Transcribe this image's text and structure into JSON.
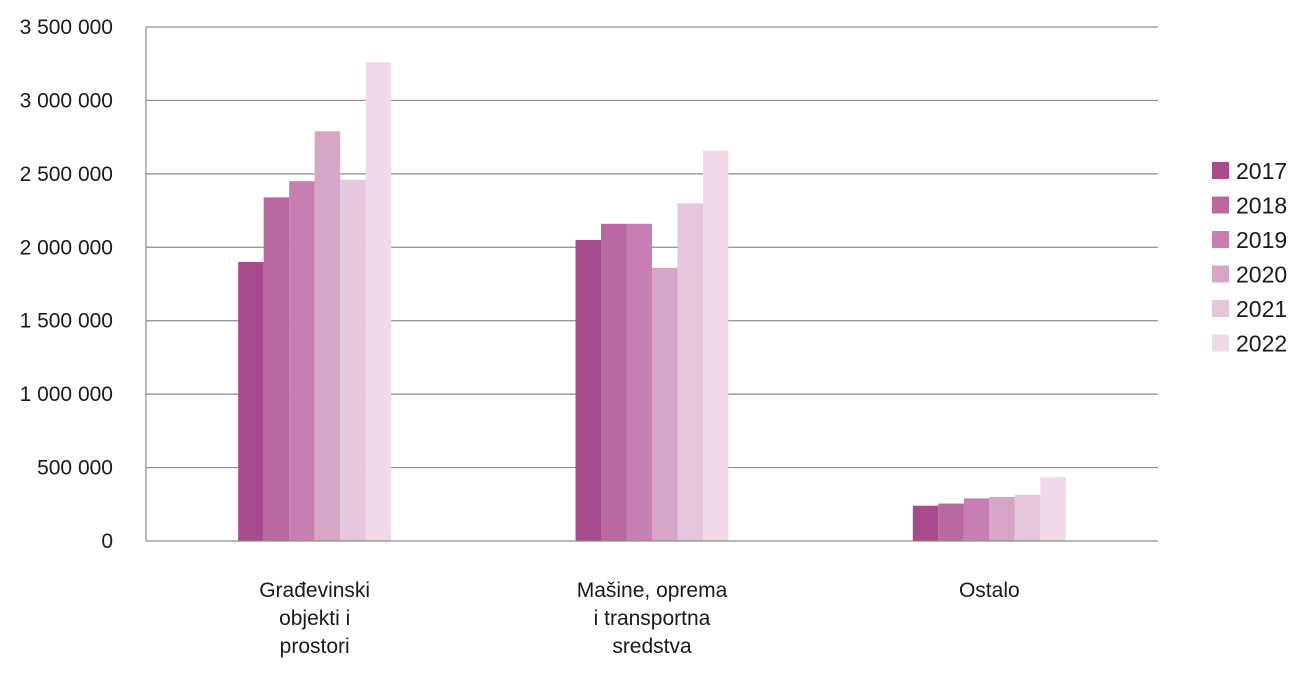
{
  "chart_data": {
    "type": "bar",
    "categories": [
      [
        "Građevinski",
        "objekti i",
        "prostori"
      ],
      [
        "Mašine, oprema",
        "i transportna",
        "sredstva"
      ],
      [
        "Ostalo"
      ]
    ],
    "series": [
      {
        "name": "2017",
        "color": "#a84a8e",
        "values": [
          1900000,
          2050000,
          240000
        ]
      },
      {
        "name": "2018",
        "color": "#b9699f",
        "values": [
          2340000,
          2160000,
          255000
        ]
      },
      {
        "name": "2019",
        "color": "#c77fb2",
        "values": [
          2450000,
          2160000,
          290000
        ]
      },
      {
        "name": "2020",
        "color": "#d6a5c8",
        "values": [
          2790000,
          1860000,
          300000
        ]
      },
      {
        "name": "2021",
        "color": "#e6c6dc",
        "values": [
          2460000,
          2300000,
          315000
        ]
      },
      {
        "name": "2022",
        "color": "#f0d9e8",
        "values": [
          3260000,
          2660000,
          435000
        ]
      }
    ],
    "ylim": [
      0,
      3500000
    ],
    "yticks": [
      0,
      500000,
      1000000,
      1500000,
      2000000,
      2500000,
      3000000,
      3500000
    ],
    "ytick_labels": [
      "0",
      "500 000",
      "1 000 000",
      "1 500 000",
      "2 000 000",
      "2 500 000",
      "3 000 000",
      "3 500 000"
    ],
    "grid": true,
    "legend_position": "right",
    "title": "",
    "xlabel": "",
    "ylabel": ""
  }
}
